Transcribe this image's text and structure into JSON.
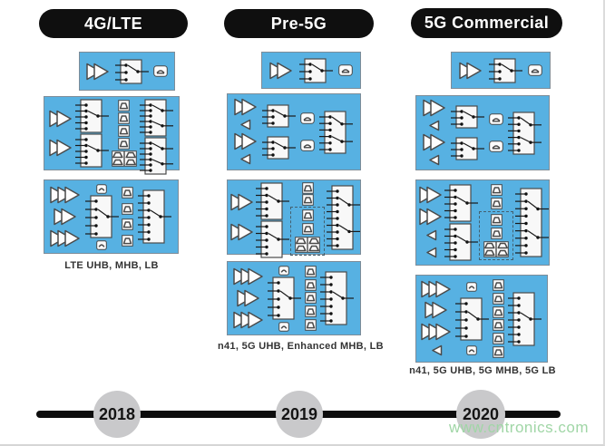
{
  "columns": [
    {
      "id": "4g-lte",
      "pill": "4G/LTE",
      "caption": "LTE UHB, MHB, LB",
      "boxes": [
        {
          "cols": [
            [
              "amp2"
            ],
            [
              "sw3x26"
            ],
            [
              "filtr"
            ]
          ]
        },
        {
          "cols": [
            [
              "amp2",
              "amp2"
            ],
            [
              "sw5x36",
              "sw5x36"
            ],
            [
              "filt",
              "filt",
              "filt",
              "filt",
              "quad"
            ],
            [
              "sw6x40",
              "sw6x40"
            ]
          ]
        },
        {
          "cols": [
            [
              "amp3",
              "amp2",
              "amp3"
            ],
            [
              "filtsm",
              "sw5x46",
              "filtsm"
            ],
            [
              "filt",
              "filt",
              "filt",
              "filt"
            ],
            [
              "sw7x58"
            ]
          ]
        }
      ]
    },
    {
      "id": "pre-5g",
      "pill": "Pre-5G",
      "caption": "n41, 5G UHB, Enhanced MHB, LB",
      "boxes": [
        {
          "cols": [
            [
              "amp2"
            ],
            [
              "sw3x26"
            ],
            [
              "filtr"
            ]
          ]
        },
        {
          "cols": [
            [
              "amp2",
              "tri",
              "amp2",
              "tri"
            ],
            [
              "sw3x24",
              "sw3x24"
            ],
            [
              "filtr",
              "filtr"
            ],
            [
              "sw6x46"
            ]
          ]
        },
        {
          "cols": [
            [
              "amp2",
              "amp2"
            ],
            [
              "sw5x40",
              "sw5x40"
            ],
            [
              "filt",
              "filt",
              {
                "dashed": [
                  "filt",
                  "filt",
                  "quad"
                ]
              }
            ],
            [
              "sw9x70"
            ]
          ]
        },
        {
          "cols": [
            [
              "amp3",
              "amp2",
              "amp3"
            ],
            [
              "filtsm",
              "sw5x46",
              "filtsm"
            ],
            [
              "filt",
              "filt",
              "filt",
              "filt",
              "filt"
            ],
            [
              "sw7x58"
            ]
          ]
        }
      ]
    },
    {
      "id": "5g-commercial",
      "pill": "5G Commercial",
      "caption": "n41, 5G UHB, 5G MHB, 5G LB",
      "boxes": [
        {
          "cols": [
            [
              "amp2"
            ],
            [
              "sw3x26"
            ],
            [
              "filtr"
            ]
          ]
        },
        {
          "cols": [
            [
              "amp2",
              "tri",
              "amp2",
              "tri"
            ],
            [
              "sw3x24",
              "sw3x24"
            ],
            [
              "filtr",
              "filtr"
            ],
            [
              "sw6x46"
            ]
          ]
        },
        {
          "cols": [
            [
              "amp2",
              "amp2",
              "tri",
              "tri"
            ],
            [
              "sw5x40",
              "sw5x40"
            ],
            [
              "filt",
              "filt",
              {
                "dashed": [
                  "filt",
                  "filt",
                  "quad"
                ]
              }
            ],
            [
              "sw9x75"
            ]
          ]
        },
        {
          "cols": [
            [
              "amp3",
              "amp2",
              "amp3",
              "tri"
            ],
            [
              "filtsm",
              "sw5x46",
              "filtsm"
            ],
            [
              "filt",
              "filt",
              "filt",
              "filt",
              "filt",
              "filt"
            ],
            [
              "sw7x58"
            ]
          ]
        }
      ]
    }
  ],
  "timeline": {
    "years": [
      "2018",
      "2019",
      "2020"
    ]
  },
  "watermark": "www.cntronics.com",
  "icon_legend": {
    "amp2": "power-amplifier-2stage-icon",
    "amp3": "power-amplifier-3stage-icon",
    "tri": "rx-lna-icon",
    "sw": "rf-switch-icon",
    "filt": "filter-icon",
    "filtsm": "small-filter-icon",
    "filtr": "antenna-filter-icon",
    "quad": "multiplexer-icon"
  },
  "colors": {
    "panel": "#57b1e2",
    "panel_border": "#7d8c98",
    "pill_bg": "#0f0f0f",
    "pill_text": "#ffffff",
    "line": "#0d0d0d",
    "circle": "#c9c9cb",
    "caption_text": "#333333",
    "watermark": "#a0d6a6"
  }
}
